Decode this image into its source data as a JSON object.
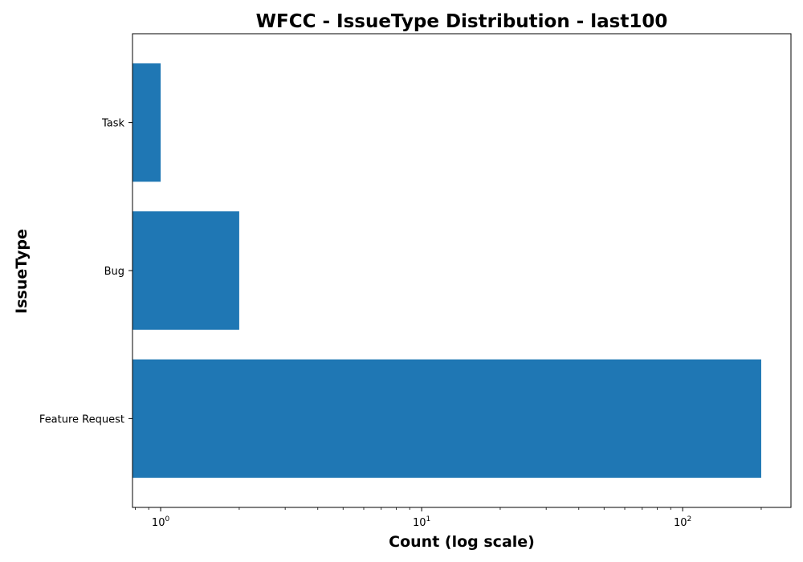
{
  "chart_data": {
    "type": "bar",
    "orientation": "horizontal",
    "title": "WFCC - IssueType Distribution - last100",
    "xlabel": "Count (log scale)",
    "ylabel": "IssueType",
    "x_scale": "log",
    "xlim": [
      0.78,
      260
    ],
    "x_ticks": [
      {
        "value": 1,
        "base": "10",
        "exp": "0"
      },
      {
        "value": 10,
        "base": "10",
        "exp": "1"
      },
      {
        "value": 100,
        "base": "10",
        "exp": "2"
      }
    ],
    "categories": [
      "Feature Request",
      "Bug",
      "Task"
    ],
    "values": [
      200,
      2,
      1
    ],
    "bar_color": "#1f77b4",
    "grid": false,
    "legend": "none"
  }
}
